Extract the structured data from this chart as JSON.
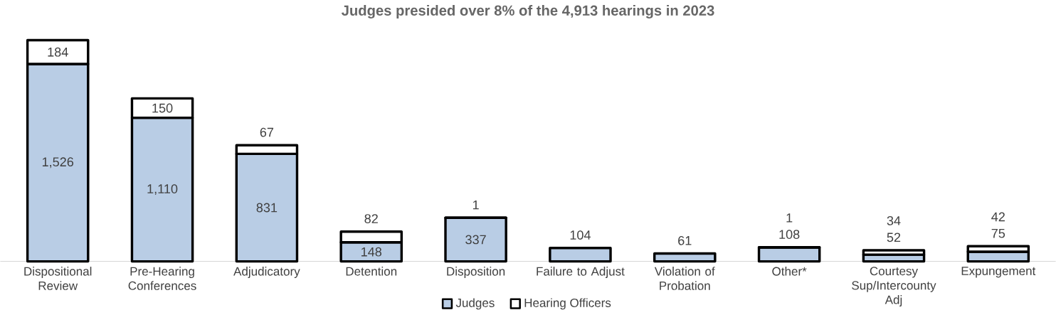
{
  "chart_data": {
    "type": "bar",
    "stacked": true,
    "title": "Judges presided over 8% of the 4,913 hearings in 2023",
    "categories": [
      "Dispositional Review",
      "Pre-Hearing Conferences",
      "Adjudicatory",
      "Detention",
      "Disposition",
      "Failure to Adjust",
      "Violation of Probation",
      "Other*",
      "Courtesy Sup/Intercounty Adj",
      "Expungement"
    ],
    "series": [
      {
        "name": "Judges",
        "color": "#b9cde5",
        "values": [
          1526,
          1110,
          831,
          148,
          337,
          104,
          61,
          108,
          52,
          75
        ],
        "value_labels": [
          "1,526",
          "1,110",
          "831",
          "148",
          "337",
          "104",
          "61",
          "108",
          "52",
          "75"
        ]
      },
      {
        "name": "Hearing Officers",
        "color": "#ffffff",
        "values": [
          184,
          150,
          67,
          82,
          1,
          null,
          null,
          1,
          34,
          42
        ],
        "value_labels": [
          "184",
          "150",
          "67",
          "82",
          "1",
          null,
          null,
          "1",
          "34",
          "42"
        ]
      }
    ],
    "legend": "bottom"
  }
}
